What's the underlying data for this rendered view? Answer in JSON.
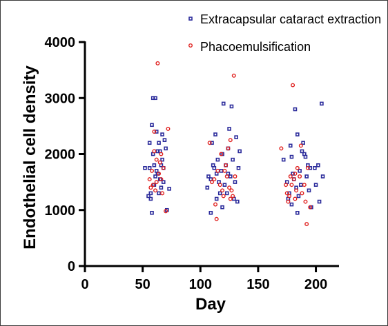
{
  "chart_data": {
    "type": "scatter",
    "title": "",
    "xlabel": "Day",
    "ylabel": "Endothelial cell density",
    "xlim": [
      0,
      220
    ],
    "ylim": [
      0,
      4000
    ],
    "x_ticks": [
      0,
      50,
      100,
      150,
      200
    ],
    "y_ticks": [
      0,
      1000,
      2000,
      3000,
      4000
    ],
    "grid": false,
    "legend_position": "top-right",
    "series": [
      {
        "name": "Extracapsular cataract extraction",
        "color": "#2b2b9b",
        "marker": "square",
        "points": [
          [
            55,
            1250
          ],
          [
            57,
            1300
          ],
          [
            56,
            1750
          ],
          [
            58,
            2520
          ],
          [
            59,
            3000
          ],
          [
            61,
            3000
          ],
          [
            58,
            950
          ],
          [
            60,
            1450
          ],
          [
            62,
            1700
          ],
          [
            63,
            2050
          ],
          [
            64,
            2200
          ],
          [
            65,
            2050
          ],
          [
            66,
            1800
          ],
          [
            67,
            2350
          ],
          [
            68,
            1500
          ],
          [
            69,
            2250
          ],
          [
            70,
            2100
          ],
          [
            71,
            1000
          ],
          [
            73,
            1380
          ],
          [
            63,
            1650
          ],
          [
            66,
            1400
          ],
          [
            61,
            1600
          ],
          [
            59,
            2000
          ],
          [
            57,
            1200
          ],
          [
            62,
            2400
          ],
          [
            65,
            1550
          ],
          [
            67,
            1900
          ],
          [
            64,
            1300
          ],
          [
            52,
            1750
          ],
          [
            56,
            2200
          ],
          [
            60,
            1800
          ],
          [
            68,
            1750
          ],
          [
            107,
            1600
          ],
          [
            109,
            1550
          ],
          [
            110,
            2200
          ],
          [
            111,
            1800
          ],
          [
            112,
            1750
          ],
          [
            113,
            2350
          ],
          [
            114,
            1650
          ],
          [
            115,
            1900
          ],
          [
            116,
            1500
          ],
          [
            117,
            1300
          ],
          [
            118,
            1700
          ],
          [
            119,
            2000
          ],
          [
            120,
            2900
          ],
          [
            121,
            1450
          ],
          [
            122,
            1800
          ],
          [
            123,
            1300
          ],
          [
            124,
            2100
          ],
          [
            125,
            2450
          ],
          [
            126,
            1600
          ],
          [
            127,
            2850
          ],
          [
            128,
            1900
          ],
          [
            129,
            1200
          ],
          [
            130,
            1500
          ],
          [
            131,
            2300
          ],
          [
            132,
            1150
          ],
          [
            133,
            1750
          ],
          [
            109,
            950
          ],
          [
            114,
            1200
          ],
          [
            106,
            1400
          ],
          [
            119,
            1050
          ],
          [
            124,
            1650
          ],
          [
            134,
            2050
          ],
          [
            172,
            1900
          ],
          [
            175,
            1500
          ],
          [
            176,
            1200
          ],
          [
            177,
            1300
          ],
          [
            178,
            2150
          ],
          [
            179,
            1950
          ],
          [
            180,
            1650
          ],
          [
            181,
            1550
          ],
          [
            182,
            2800
          ],
          [
            183,
            1400
          ],
          [
            184,
            2350
          ],
          [
            185,
            1250
          ],
          [
            186,
            1700
          ],
          [
            187,
            1450
          ],
          [
            188,
            2050
          ],
          [
            189,
            2200
          ],
          [
            190,
            2000
          ],
          [
            191,
            1950
          ],
          [
            192,
            1600
          ],
          [
            193,
            1800
          ],
          [
            194,
            1350
          ],
          [
            195,
            1750
          ],
          [
            196,
            1050
          ],
          [
            199,
            1750
          ],
          [
            200,
            1450
          ],
          [
            202,
            1800
          ],
          [
            203,
            1150
          ],
          [
            205,
            2900
          ],
          [
            206,
            1600
          ],
          [
            184,
            950
          ],
          [
            179,
            1100
          ]
        ]
      },
      {
        "name": "Phacoemulsification",
        "color": "#e0201e",
        "marker": "circle",
        "points": [
          [
            56,
            1550
          ],
          [
            57,
            1400
          ],
          [
            58,
            1700
          ],
          [
            59,
            1450
          ],
          [
            60,
            2400
          ],
          [
            61,
            1350
          ],
          [
            62,
            1900
          ],
          [
            63,
            3620
          ],
          [
            64,
            1650
          ],
          [
            65,
            1850
          ],
          [
            66,
            1550
          ],
          [
            67,
            1300
          ],
          [
            68,
            1750
          ],
          [
            70,
            980
          ],
          [
            72,
            2450
          ],
          [
            60,
            2050
          ],
          [
            62,
            1500
          ],
          [
            66,
            2000
          ],
          [
            108,
            2200
          ],
          [
            110,
            1500
          ],
          [
            112,
            1550
          ],
          [
            113,
            1100
          ],
          [
            114,
            840
          ],
          [
            115,
            1700
          ],
          [
            117,
            1450
          ],
          [
            118,
            2000
          ],
          [
            119,
            1350
          ],
          [
            120,
            1250
          ],
          [
            121,
            1700
          ],
          [
            122,
            1800
          ],
          [
            123,
            1600
          ],
          [
            124,
            2100
          ],
          [
            125,
            1400
          ],
          [
            126,
            1200
          ],
          [
            127,
            1350
          ],
          [
            128,
            1250
          ],
          [
            129,
            3400
          ],
          [
            130,
            1600
          ],
          [
            126,
            2250
          ],
          [
            170,
            2100
          ],
          [
            174,
            1450
          ],
          [
            175,
            1300
          ],
          [
            176,
            1150
          ],
          [
            177,
            1250
          ],
          [
            178,
            1600
          ],
          [
            179,
            1450
          ],
          [
            180,
            3230
          ],
          [
            181,
            1550
          ],
          [
            182,
            1200
          ],
          [
            183,
            1350
          ],
          [
            184,
            1750
          ],
          [
            186,
            1600
          ],
          [
            188,
            1300
          ],
          [
            190,
            1450
          ],
          [
            191,
            1150
          ],
          [
            192,
            750
          ],
          [
            193,
            1750
          ],
          [
            195,
            1050
          ],
          [
            187,
            2150
          ],
          [
            182,
            1650
          ]
        ]
      }
    ]
  }
}
